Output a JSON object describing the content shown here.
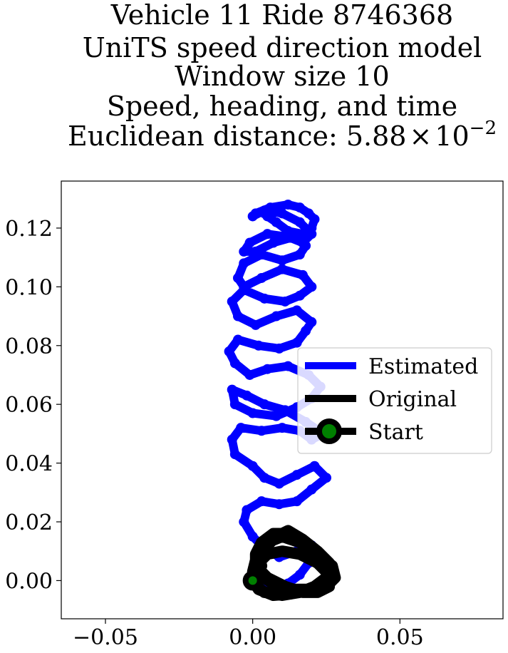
{
  "chart_data": {
    "type": "line",
    "title_lines": [
      "Vehicle 11 Ride 8746368",
      "UniTS speed direction model",
      "Window size 10",
      "Speed, heading, and time"
    ],
    "title_metric": {
      "prefix": "Euclidean distance: ",
      "mantissa": "5.88",
      "times": "×",
      "base": "10",
      "exponent": "−2"
    },
    "xlabel": "",
    "ylabel": "",
    "xlim": [
      -0.065,
      0.085
    ],
    "ylim": [
      -0.013,
      0.136
    ],
    "xticks": [
      {
        "value": -0.05,
        "label": "−0.05"
      },
      {
        "value": 0.0,
        "label": "0.00"
      },
      {
        "value": 0.05,
        "label": "0.05"
      }
    ],
    "yticks": [
      {
        "value": 0.0,
        "label": "0.00"
      },
      {
        "value": 0.02,
        "label": "0.02"
      },
      {
        "value": 0.04,
        "label": "0.04"
      },
      {
        "value": 0.06,
        "label": "0.06"
      },
      {
        "value": 0.08,
        "label": "0.08"
      },
      {
        "value": 0.1,
        "label": "0.10"
      },
      {
        "value": 0.12,
        "label": "0.12"
      }
    ],
    "grid": false,
    "legend_position": "center-right",
    "series": [
      {
        "name": "Estimated",
        "color": "#0000ff",
        "marker": "o",
        "x": [
          0.0,
          0.006,
          0.012,
          0.016,
          0.019,
          0.021,
          0.02,
          0.015,
          0.009,
          0.004,
          0.0,
          -0.003,
          -0.002,
          0.003,
          0.009,
          0.015,
          0.02,
          0.025,
          0.021,
          0.015,
          0.009,
          0.004,
          0.0,
          -0.006,
          -0.007,
          -0.004,
          0.003,
          0.01,
          0.016,
          0.02,
          0.024,
          0.018,
          0.011,
          0.004,
          -0.002,
          -0.007,
          -0.006,
          0.0,
          0.008,
          0.015,
          0.02,
          0.023,
          0.019,
          0.012,
          0.005,
          -0.001,
          -0.006,
          -0.008,
          -0.005,
          0.002,
          0.009,
          0.015,
          0.018,
          0.02,
          0.015,
          0.008,
          0.001,
          -0.005,
          -0.007,
          -0.003,
          0.004,
          0.011,
          0.016,
          0.02,
          0.017,
          0.01,
          0.003,
          -0.003,
          -0.005,
          -0.003,
          0.003,
          0.01,
          0.016,
          0.018,
          0.014,
          0.007,
          0.001,
          -0.003,
          -0.001,
          0.005,
          0.012,
          0.017,
          0.02,
          0.016,
          0.01,
          0.004,
          0.0,
          0.001,
          0.006,
          0.012,
          0.016,
          0.019,
          0.021,
          0.02,
          0.017,
          0.012,
          0.008,
          0.005,
          0.004
        ],
        "y": [
          0.0,
          -0.003,
          -0.001,
          0.002,
          0.006,
          0.009,
          0.012,
          0.01,
          0.008,
          0.011,
          0.015,
          0.02,
          0.024,
          0.027,
          0.026,
          0.027,
          0.031,
          0.035,
          0.039,
          0.036,
          0.033,
          0.035,
          0.039,
          0.043,
          0.048,
          0.052,
          0.051,
          0.052,
          0.051,
          0.048,
          0.05,
          0.054,
          0.058,
          0.06,
          0.063,
          0.065,
          0.06,
          0.057,
          0.056,
          0.059,
          0.062,
          0.066,
          0.07,
          0.073,
          0.072,
          0.07,
          0.074,
          0.078,
          0.082,
          0.08,
          0.079,
          0.081,
          0.085,
          0.088,
          0.092,
          0.09,
          0.087,
          0.09,
          0.095,
          0.099,
          0.096,
          0.095,
          0.097,
          0.1,
          0.104,
          0.106,
          0.103,
          0.1,
          0.103,
          0.108,
          0.111,
          0.109,
          0.111,
          0.114,
          0.117,
          0.115,
          0.112,
          0.112,
          0.115,
          0.118,
          0.117,
          0.115,
          0.118,
          0.122,
          0.125,
          0.126,
          0.124,
          0.125,
          0.127,
          0.128,
          0.127,
          0.125,
          0.123,
          0.12,
          0.118,
          0.119,
          0.122,
          0.124,
          0.125
        ]
      },
      {
        "name": "Original",
        "color": "#000000",
        "x": [
          0.0,
          0.002,
          0.007,
          0.013,
          0.019,
          0.024,
          0.027,
          0.026,
          0.022,
          0.017,
          0.012,
          0.008,
          0.004,
          0.001,
          0.0,
          0.0,
          0.004,
          0.01,
          0.016,
          0.021,
          0.025,
          0.027,
          0.024,
          0.019,
          0.013,
          0.007,
          0.003,
          0.001,
          0.001,
          0.005,
          0.011,
          0.017,
          0.022,
          0.026,
          0.026,
          0.022,
          0.016,
          0.01,
          0.005,
          0.002,
          0.002,
          0.007,
          0.014,
          0.02,
          0.025,
          0.028,
          0.027,
          0.022,
          0.016,
          0.01,
          0.005,
          0.002,
          0.003
        ],
        "y": [
          0.0,
          -0.003,
          -0.005,
          -0.0045,
          -0.003,
          -0.001,
          0.002,
          0.006,
          0.01,
          0.014,
          0.017,
          0.015,
          0.011,
          0.007,
          0.003,
          -0.001,
          -0.004,
          -0.005,
          -0.004,
          -0.002,
          0.001,
          0.004,
          0.008,
          0.012,
          0.016,
          0.016,
          0.013,
          0.009,
          0.005,
          0.001,
          -0.002,
          -0.004,
          -0.004,
          -0.002,
          0.002,
          0.006,
          0.009,
          0.01,
          0.009,
          0.006,
          0.002,
          -0.001,
          -0.003,
          -0.003,
          -0.002,
          0.001,
          0.005,
          0.009,
          0.013,
          0.015,
          0.013,
          0.009,
          0.005
        ]
      }
    ],
    "start_point": {
      "name": "Start",
      "x": 0.0,
      "y": 0.0,
      "color": "#008000",
      "outline": "#000000"
    }
  }
}
